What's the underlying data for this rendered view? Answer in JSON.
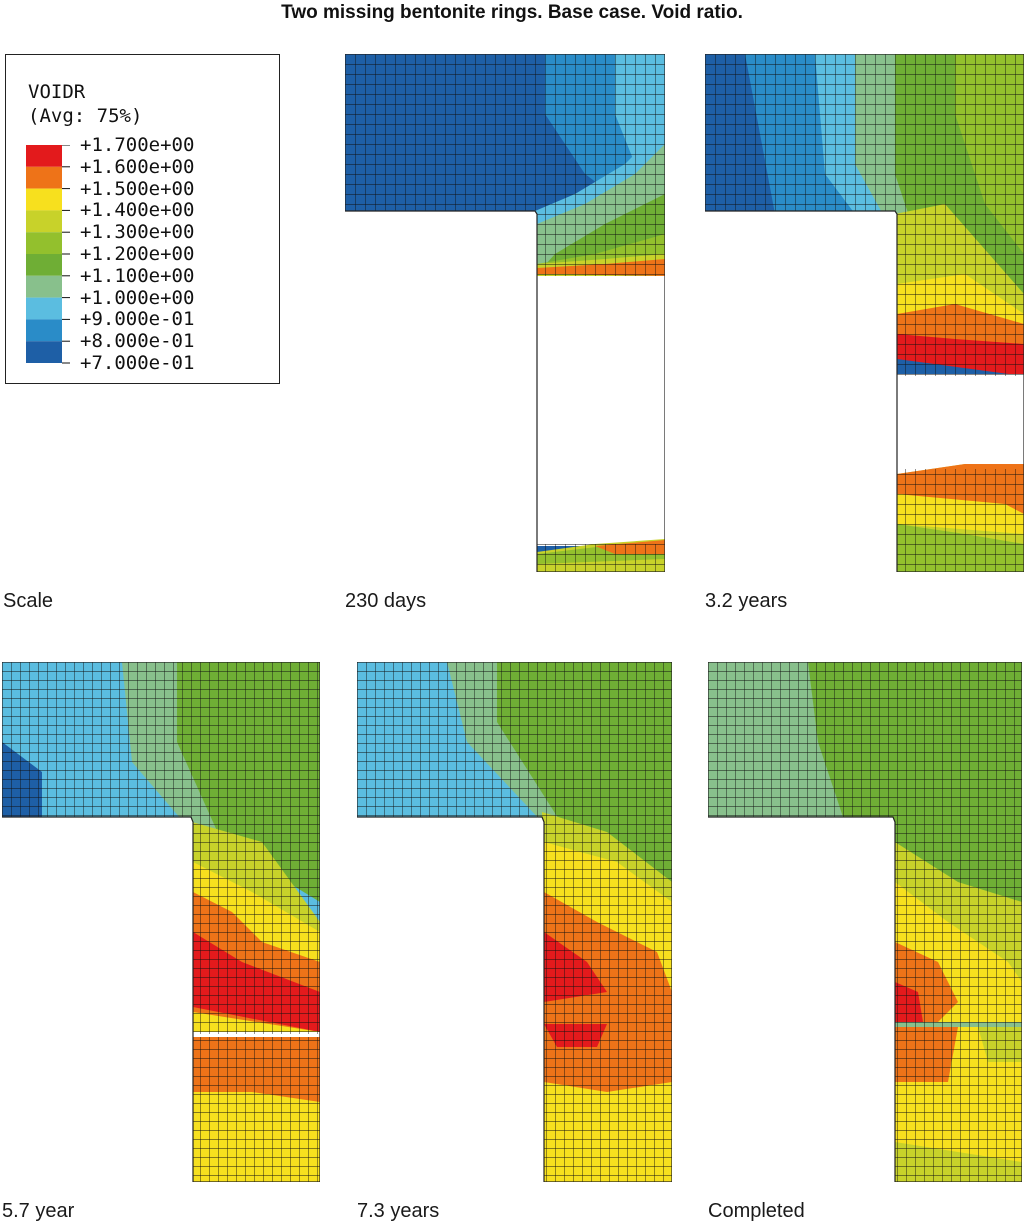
{
  "title": "Two missing bentonite rings. Base case. Void ratio.",
  "legend": {
    "variable": "VOIDR",
    "averaging": "(Avg: 75%)",
    "levels": [
      {
        "label": "+1.700e+00",
        "color": "#e31a1c"
      },
      {
        "label": "+1.600e+00",
        "color": "#ee7318"
      },
      {
        "label": "+1.500e+00",
        "color": "#f7e01e"
      },
      {
        "label": "+1.400e+00",
        "color": "#c8d22a"
      },
      {
        "label": "+1.300e+00",
        "color": "#93c02d"
      },
      {
        "label": "+1.200e+00",
        "color": "#6fae35"
      },
      {
        "label": "+1.100e+00",
        "color": "#88c08c"
      },
      {
        "label": "+1.000e+00",
        "color": "#5bbde0"
      },
      {
        "label": "+9.000e-01",
        "color": "#2a8cc8"
      },
      {
        "label": "+8.000e-01",
        "color": "#1e5fa6"
      },
      {
        "label": "+7.000e-01",
        "color": ""
      }
    ]
  },
  "captions": {
    "scale": "Scale",
    "p1": "230 days",
    "p2": "3.2 years",
    "p3": "5.7 year",
    "p4": "7.3 years",
    "p5": "Completed"
  }
}
